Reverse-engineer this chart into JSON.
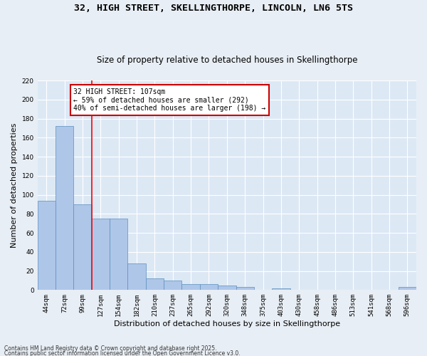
{
  "title": "32, HIGH STREET, SKELLINGTHORPE, LINCOLN, LN6 5TS",
  "subtitle": "Size of property relative to detached houses in Skellingthorpe",
  "xlabel": "Distribution of detached houses by size in Skellingthorpe",
  "ylabel": "Number of detached properties",
  "categories": [
    "44sqm",
    "72sqm",
    "99sqm",
    "127sqm",
    "154sqm",
    "182sqm",
    "210sqm",
    "237sqm",
    "265sqm",
    "292sqm",
    "320sqm",
    "348sqm",
    "375sqm",
    "403sqm",
    "430sqm",
    "458sqm",
    "486sqm",
    "513sqm",
    "541sqm",
    "568sqm",
    "596sqm"
  ],
  "values": [
    94,
    172,
    90,
    75,
    75,
    28,
    12,
    10,
    6,
    6,
    5,
    3,
    0,
    2,
    0,
    0,
    0,
    0,
    0,
    0,
    3
  ],
  "bar_color": "#aec6e8",
  "bar_edge_color": "#5a8fc0",
  "background_color": "#dde8f5",
  "grid_color": "#ffffff",
  "redline_x": 2.5,
  "annotation_text": "32 HIGH STREET: 107sqm\n← 59% of detached houses are smaller (292)\n40% of semi-detached houses are larger (198) →",
  "annotation_box_color": "#ffffff",
  "annotation_box_edgecolor": "#cc0000",
  "footer_line1": "Contains HM Land Registry data © Crown copyright and database right 2025.",
  "footer_line2": "Contains public sector information licensed under the Open Government Licence v3.0.",
  "ylim": [
    0,
    220
  ],
  "yticks": [
    0,
    20,
    40,
    60,
    80,
    100,
    120,
    140,
    160,
    180,
    200,
    220
  ],
  "title_fontsize": 9.5,
  "subtitle_fontsize": 8.5,
  "tick_fontsize": 6.5,
  "label_fontsize": 8,
  "annotation_fontsize": 7
}
